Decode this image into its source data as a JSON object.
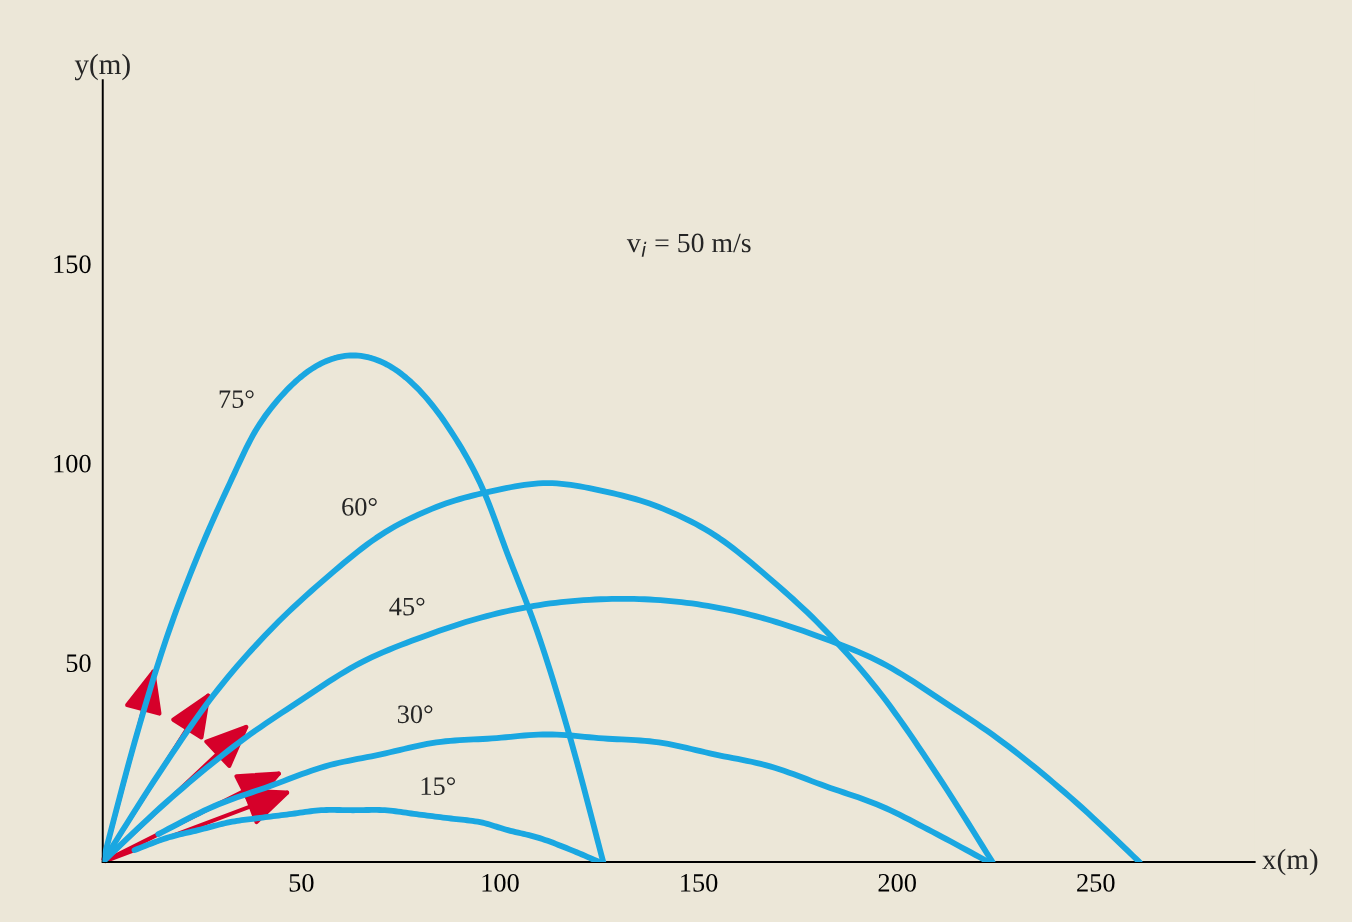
{
  "chart_data": {
    "type": "line",
    "xlabel": "x(m)",
    "ylabel": "y(m)",
    "annotations": [
      "v$_{i}$ = 50 m/s"
    ],
    "xlim": [
      0,
      290
    ],
    "ylim": [
      0,
      196
    ],
    "xticks": [
      50,
      100,
      150,
      200,
      250
    ],
    "yticks": [
      50,
      100,
      150
    ],
    "grid": false,
    "legend": false,
    "series": [
      {
        "name": "75°",
        "color": "#1aa7e1",
        "x": [
          0,
          8,
          16,
          24,
          32,
          39,
          47,
          55,
          63,
          71,
          79,
          87,
          95,
          102,
          110,
          118,
          126
        ],
        "values": [
          0,
          30,
          56,
          77,
          95,
          109,
          119,
          125,
          127,
          125,
          119,
          109,
          95,
          77,
          56,
          30,
          0
        ]
      },
      {
        "name": "60°",
        "color": "#1aa7e1",
        "x": [
          0,
          14,
          28,
          42,
          56,
          70,
          84,
          98,
          112,
          126,
          140,
          154,
          168,
          182,
          196,
          210,
          224
        ],
        "values": [
          0,
          22,
          42,
          58,
          71,
          82,
          89,
          93,
          95,
          93,
          89,
          82,
          71,
          58,
          42,
          22,
          0
        ]
      },
      {
        "name": "45°",
        "color": "#1aa7e1",
        "x": [
          0,
          16,
          33,
          49,
          65,
          82,
          98,
          114,
          131,
          147,
          163,
          179,
          196,
          212,
          228,
          245,
          261
        ],
        "values": [
          0,
          15,
          29,
          40,
          50,
          57,
          62,
          65,
          66,
          65,
          62,
          57,
          50,
          40,
          29,
          15,
          0
        ]
      },
      {
        "name": "30°",
        "color": "#1aa7e1",
        "x": [
          14,
          28,
          42,
          56,
          70,
          84,
          98,
          112,
          126,
          140,
          154,
          168,
          182,
          196,
          210,
          223
        ],
        "values": [
          7,
          14,
          19,
          24,
          27,
          30,
          31,
          32,
          31,
          30,
          27,
          24,
          19,
          14,
          7,
          0
        ]
      },
      {
        "name": "15°",
        "color": "#1aa7e1",
        "x": [
          8,
          16,
          24,
          32,
          39,
          47,
          55,
          63,
          71,
          79,
          87,
          95,
          102,
          110,
          118,
          125
        ],
        "values": [
          3,
          6,
          8,
          10,
          11,
          12,
          13,
          13,
          13,
          12,
          11,
          10,
          8,
          6,
          3,
          0
        ]
      }
    ]
  }
}
